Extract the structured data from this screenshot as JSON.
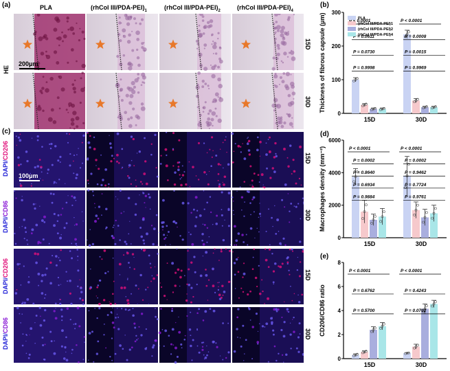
{
  "labels": {
    "a": "(a)",
    "b": "(b)",
    "c": "(c)",
    "d": "(d)",
    "e": "(e)"
  },
  "he": {
    "columns": [
      "PLA",
      "(rhCol III/PDA-PEI)",
      "(rhCol III/PDA-PEI)",
      "(rhCol III/PDA-PEI)"
    ],
    "column_subs": [
      "",
      "1",
      "2",
      "4"
    ],
    "row_label": "HE",
    "timepoints": [
      "15D",
      "30D"
    ],
    "scale_bar": "200μm"
  },
  "fluor": {
    "scale_bar": "100μm",
    "rows": [
      {
        "dapi": "DAPI/",
        "marker": "CD206",
        "marker_color": "#e0107a",
        "time": "15D"
      },
      {
        "dapi": "DAPI/",
        "marker": "CD86",
        "marker_color": "#8a1ad6",
        "time": "30D"
      },
      {
        "dapi": "DAPI/",
        "marker": "CD206",
        "marker_color": "#e0107a",
        "time": "15D"
      },
      {
        "dapi": "DAPI/",
        "marker": "CD86",
        "marker_color": "#8a1ad6",
        "time": "30D"
      }
    ]
  },
  "colors": {
    "PLA": "#c9d3f3",
    "M1": "#f6c9cc",
    "M2": "#a9aede",
    "M4": "#a9e6e8"
  },
  "chart_data": [
    {
      "id": "b",
      "type": "bar",
      "categories": [
        "15D",
        "30D"
      ],
      "series": [
        {
          "name": "PLA",
          "values": [
            100,
            235
          ],
          "err": [
            6,
            12
          ]
        },
        {
          "name": "(rhCol III/PDA-PEI)1",
          "values": [
            25,
            38
          ],
          "err": [
            4,
            6
          ]
        },
        {
          "name": "(rhCol III/PDA-PEI)2",
          "values": [
            13,
            18
          ],
          "err": [
            3,
            3
          ]
        },
        {
          "name": "(rhCol III/PDA-PEI)4",
          "values": [
            13,
            18
          ],
          "err": [
            3,
            3
          ]
        }
      ],
      "ylabel": "Thickness of fibrous capsule (μm)",
      "ylim": [
        0,
        300
      ],
      "yticks": [
        0,
        100,
        200,
        300
      ],
      "sig_labels": [
        "P < 0.0001",
        "P = 0.0611",
        "P = 0.0730",
        "P = 0.9998",
        "P < 0.0001",
        "P = 0.0008",
        "P = 0.0015",
        "P = 0.9969"
      ],
      "legend": "top-left"
    },
    {
      "id": "d",
      "type": "bar",
      "categories": [
        "15D",
        "30D"
      ],
      "series": [
        {
          "name": "PLA",
          "values": [
            3750,
            3800
          ],
          "err": [
            500,
            1200
          ]
        },
        {
          "name": "(rhCol III/PDA-PEI)1",
          "values": [
            1600,
            1700
          ],
          "err": [
            700,
            500
          ]
        },
        {
          "name": "(rhCol III/PDA-PEI)2",
          "values": [
            1100,
            1250
          ],
          "err": [
            350,
            500
          ]
        },
        {
          "name": "(rhCol III/PDA-PEI)4",
          "values": [
            1300,
            1500
          ],
          "err": [
            500,
            500
          ]
        }
      ],
      "ylabel": "Macrophages density (mm⁻²)",
      "ylim": [
        0,
        6000
      ],
      "yticks": [
        0,
        2000,
        4000,
        6000
      ],
      "sig_labels": [
        "P < 0.0001",
        "P = 0.0002",
        "P = 0.8640",
        "P = 0.6934",
        "P = 0.9884",
        "P < 0.0001",
        "P = 0.0002",
        "P = 0.9462",
        "P = 0.7724",
        "P = 0.9761"
      ]
    },
    {
      "id": "e",
      "type": "bar",
      "categories": [
        "15D",
        "30D"
      ],
      "series": [
        {
          "name": "PLA",
          "values": [
            0.3,
            0.45
          ],
          "err": [
            0.1,
            0.05
          ]
        },
        {
          "name": "(rhCol III/PDA-PEI)1",
          "values": [
            0.55,
            1.0
          ],
          "err": [
            0.1,
            0.2
          ]
        },
        {
          "name": "(rhCol III/PDA-PEI)2",
          "values": [
            2.4,
            4.15
          ],
          "err": [
            0.25,
            0.4
          ]
        },
        {
          "name": "(rhCol III/PDA-PEI)4",
          "values": [
            2.7,
            4.55
          ],
          "err": [
            0.3,
            0.3
          ]
        }
      ],
      "ylabel": "CD206/CD86 ratio",
      "ylim": [
        0,
        8
      ],
      "yticks": [
        0,
        2,
        4,
        6,
        8
      ],
      "sig_labels": [
        "P < 0.0001",
        "P = 0.6762",
        "P = 0.5700",
        "P < 0.0001",
        "P = 0.4243",
        "P = 0.0702"
      ]
    }
  ]
}
